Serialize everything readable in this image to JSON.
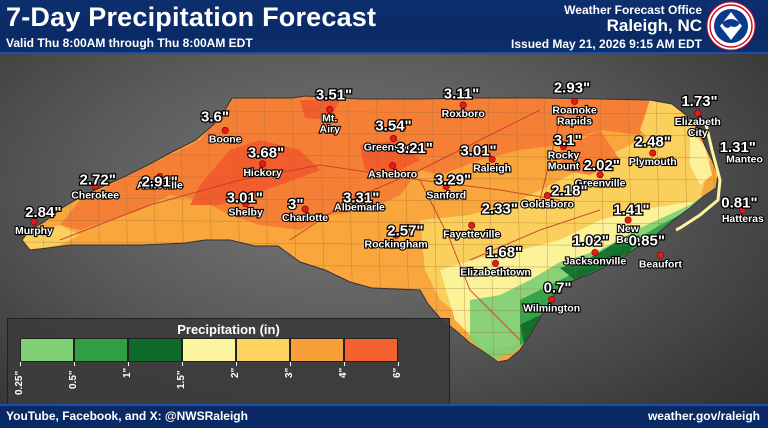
{
  "header": {
    "title": "7-Day Precipitation Forecast",
    "subtitle": "Valid Thu 8:00AM through Thu 8:00AM EDT",
    "office": "Weather Forecast Office",
    "city": "Raleigh, NC",
    "issued": "Issued May 21, 2026 9:15 AM EDT",
    "logo_icon": "nws-logo-icon"
  },
  "footer": {
    "social": "YouTube, Facebook, and X: @NWSRaleigh",
    "site": "weather.gov/raleigh"
  },
  "legend": {
    "title": "Precipitation (in)",
    "bins": [
      {
        "from": "0.25\"",
        "to": "0.5\"",
        "color": "#7fcf74"
      },
      {
        "from": "0.5\"",
        "to": "1\"",
        "color": "#2f9e45"
      },
      {
        "from": "1\"",
        "to": "1.5\"",
        "color": "#0f6b2a"
      },
      {
        "from": "1.5\"",
        "to": "2\"",
        "color": "#fbf5a0"
      },
      {
        "from": "2\"",
        "to": "3\"",
        "color": "#fbd35e"
      },
      {
        "from": "3\"",
        "to": "4\"",
        "color": "#f7a03a"
      },
      {
        "from": "4\"",
        "to": "6\"",
        "color": "#f4612e"
      }
    ],
    "ticks": [
      "0.25\"",
      "0.5\"",
      "1\"",
      "1.5\"",
      "2\"",
      "3\"",
      "4\"",
      "6\""
    ]
  },
  "values": [
    {
      "v": "3.51\"",
      "lat": 36.54,
      "lon": -80.5
    },
    {
      "v": "3.11\"",
      "lat": 36.55,
      "lon": -79.0
    },
    {
      "v": "2.93\"",
      "lat": 36.62,
      "lon": -77.7
    },
    {
      "v": "1.73\"",
      "lat": 36.47,
      "lon": -76.2
    },
    {
      "v": "3.6\"",
      "lat": 36.3,
      "lon": -81.9
    },
    {
      "v": "3.54\"",
      "lat": 36.2,
      "lon": -79.8
    },
    {
      "v": "3.68\"",
      "lat": 35.9,
      "lon": -81.3
    },
    {
      "v": "3.21\"",
      "lat": 35.95,
      "lon": -79.55
    },
    {
      "v": "3.01\"",
      "lat": 35.92,
      "lon": -78.8
    },
    {
      "v": "3.1\"",
      "lat": 36.04,
      "lon": -77.75
    },
    {
      "v": "2.48\"",
      "lat": 36.02,
      "lon": -76.75
    },
    {
      "v": "1.31\"",
      "lat": 35.96,
      "lon": -75.75
    },
    {
      "v": "2.02\"",
      "lat": 35.76,
      "lon": -77.35
    },
    {
      "v": "2.72\"",
      "lat": 35.6,
      "lon": -83.28
    },
    {
      "v": "2.91\"",
      "lat": 35.58,
      "lon": -82.55
    },
    {
      "v": "3.29\"",
      "lat": 35.6,
      "lon": -79.1
    },
    {
      "v": "2.84\"",
      "lat": 35.24,
      "lon": -83.92
    },
    {
      "v": "3.01\"",
      "lat": 35.4,
      "lon": -81.55
    },
    {
      "v": "3\"",
      "lat": 35.33,
      "lon": -80.95
    },
    {
      "v": "3.31\"",
      "lat": 35.4,
      "lon": -80.18
    },
    {
      "v": "2.18\"",
      "lat": 35.48,
      "lon": -77.73
    },
    {
      "v": "2.33\"",
      "lat": 35.28,
      "lon": -78.55
    },
    {
      "v": "1.41\"",
      "lat": 35.27,
      "lon": -77.0
    },
    {
      "v": "0.81\"",
      "lat": 35.35,
      "lon": -75.73
    },
    {
      "v": "2.57\"",
      "lat": 35.04,
      "lon": -79.66
    },
    {
      "v": "1.02\"",
      "lat": 34.93,
      "lon": -77.48
    },
    {
      "v": "0.85\"",
      "lat": 34.93,
      "lon": -76.82
    },
    {
      "v": "1.68\"",
      "lat": 34.8,
      "lon": -78.5
    },
    {
      "v": "0.7\"",
      "lat": 34.41,
      "lon": -77.87
    }
  ],
  "cities": [
    {
      "name": "Mt.\nAiry",
      "lat": 36.33,
      "lon": -80.55
    },
    {
      "name": "Roxboro",
      "lat": 36.38,
      "lon": -78.98
    },
    {
      "name": "Roanoke\nRapids",
      "lat": 36.42,
      "lon": -77.67
    },
    {
      "name": "Elizabeth\nCity",
      "lat": 36.29,
      "lon": -76.22
    },
    {
      "name": "Boone",
      "lat": 36.1,
      "lon": -81.78
    },
    {
      "name": "Greensboro",
      "lat": 36.01,
      "lon": -79.8
    },
    {
      "name": "Hickory",
      "lat": 35.73,
      "lon": -81.34
    },
    {
      "name": "Asheboro",
      "lat": 35.71,
      "lon": -79.81
    },
    {
      "name": "Raleigh",
      "lat": 35.78,
      "lon": -78.64
    },
    {
      "name": "Rocky\nMount",
      "lat": 35.92,
      "lon": -77.8
    },
    {
      "name": "Plymouth",
      "lat": 35.85,
      "lon": -76.75
    },
    {
      "name": "Manteo",
      "lat": 35.88,
      "lon": -75.67
    },
    {
      "name": "Greenville",
      "lat": 35.61,
      "lon": -77.37
    },
    {
      "name": "Cherokee",
      "lat": 35.48,
      "lon": -83.31
    },
    {
      "name": "Asheville",
      "lat": 35.59,
      "lon": -82.55
    },
    {
      "name": "Sanford",
      "lat": 35.48,
      "lon": -79.18
    },
    {
      "name": "Goldsboro",
      "lat": 35.38,
      "lon": -77.99
    },
    {
      "name": "Murphy",
      "lat": 35.09,
      "lon": -84.03
    },
    {
      "name": "Shelby",
      "lat": 35.29,
      "lon": -81.54
    },
    {
      "name": "Charlotte",
      "lat": 35.23,
      "lon": -80.84
    },
    {
      "name": "Albemarle",
      "lat": 35.35,
      "lon": -80.2
    },
    {
      "name": "Fayetteville",
      "lat": 35.05,
      "lon": -78.88
    },
    {
      "name": "New\nBern",
      "lat": 35.11,
      "lon": -77.04
    },
    {
      "name": "Hatteras",
      "lat": 35.22,
      "lon": -75.69
    },
    {
      "name": "Rockingham",
      "lat": 34.94,
      "lon": -79.77
    },
    {
      "name": "Jacksonville",
      "lat": 34.75,
      "lon": -77.43
    },
    {
      "name": "Beaufort",
      "lat": 34.72,
      "lon": -76.66
    },
    {
      "name": "Elizabethtown",
      "lat": 34.63,
      "lon": -78.6
    },
    {
      "name": "Wilmington",
      "lat": 34.23,
      "lon": -77.94
    }
  ]
}
